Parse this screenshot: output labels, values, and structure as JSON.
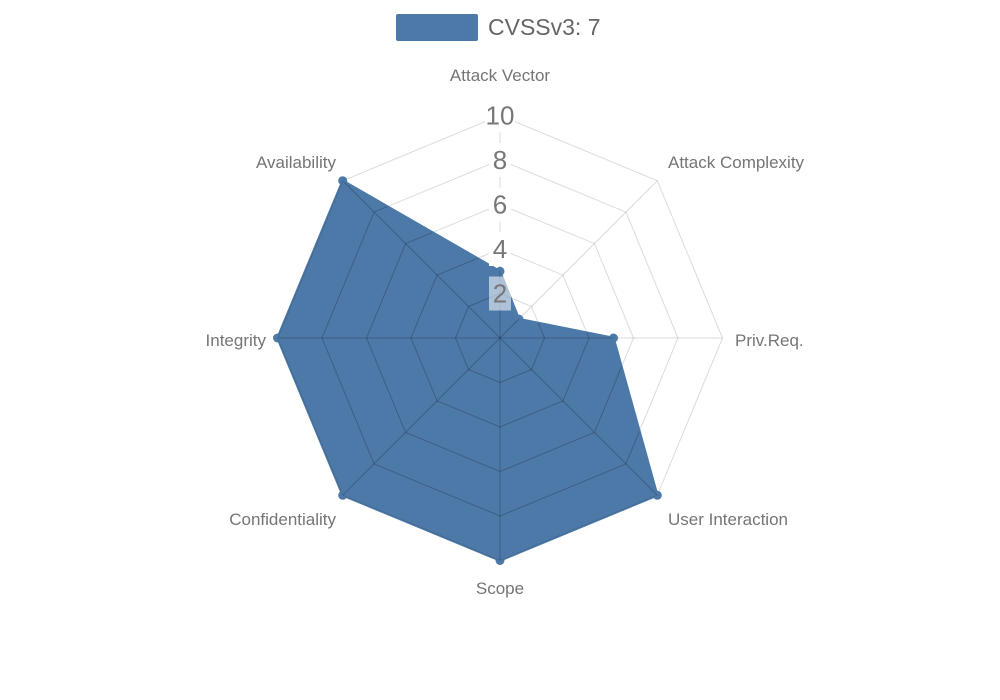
{
  "legend": {
    "label": "CVSSv3: 7",
    "swatch_color": "#4d79a8"
  },
  "chart_data": {
    "type": "radar",
    "title": "",
    "categories": [
      "Attack Vector",
      "Attack Complexity",
      "Priv.Req.",
      "User Interaction",
      "Scope",
      "Confidentiality",
      "Integrity",
      "Availability"
    ],
    "series": [
      {
        "name": "CVSSv3: 7",
        "color": "#4d79a8",
        "values": [
          3,
          1.2,
          5.1,
          10,
          10,
          10,
          10,
          10
        ]
      }
    ],
    "radial_axis": {
      "min": 0,
      "max": 10,
      "ticks": [
        10,
        8,
        6,
        4,
        2
      ],
      "tick_label_color": "#777777",
      "tick_label_background": "#ffffff"
    },
    "axis_label_color": "#757575",
    "grid": true,
    "grid_shape": "polygon",
    "legend_position": "top-center",
    "background": "#ffffff"
  }
}
